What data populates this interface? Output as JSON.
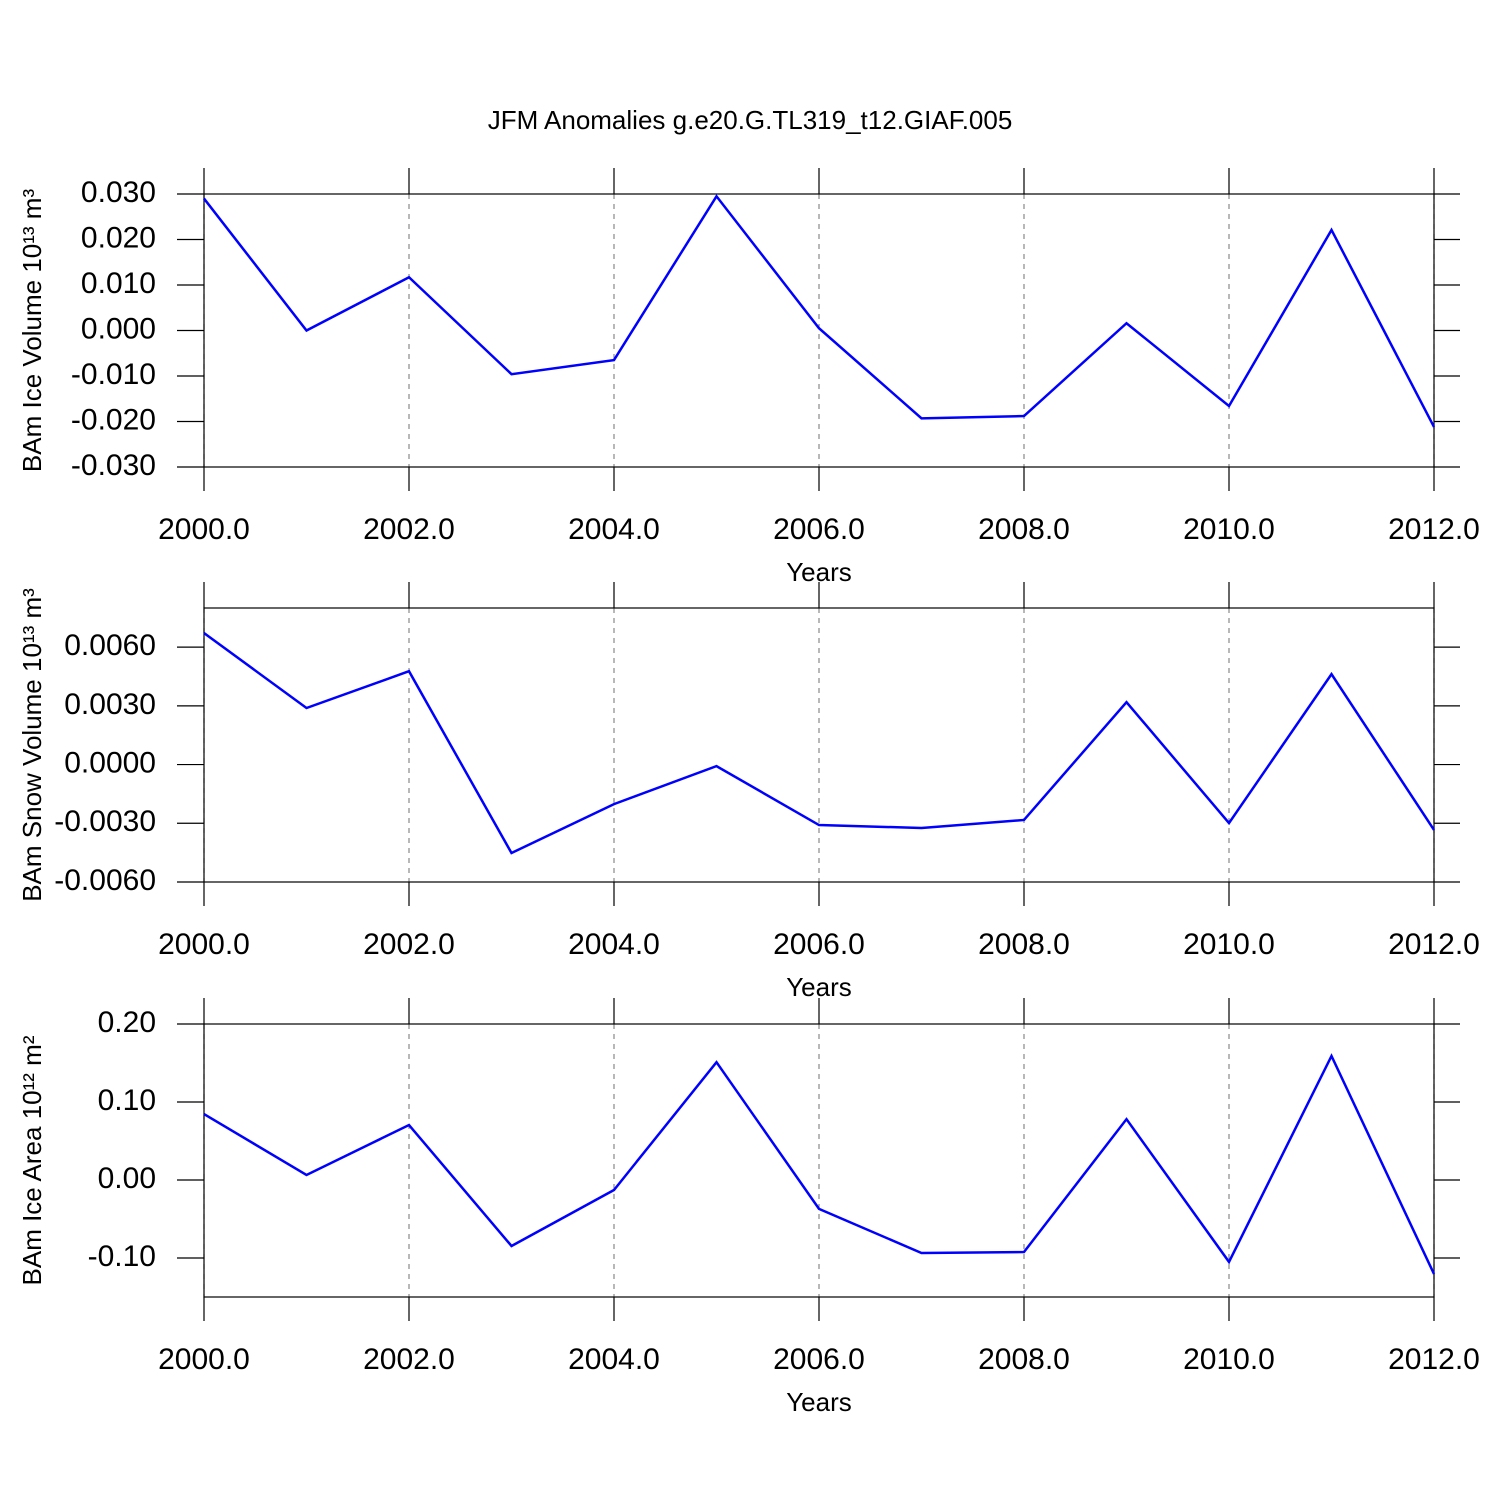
{
  "chart_data": [
    {
      "type": "line",
      "title": "JFM Anomalies g.e20.G.TL319_t12.GIAF.005",
      "xlabel": "Years",
      "ylabel": "BAm Ice Volume 10¹³ m³",
      "x": [
        2000,
        2001,
        2002,
        2003,
        2004,
        2005,
        2006,
        2007,
        2008,
        2009,
        2010,
        2011,
        2012
      ],
      "values": [
        0.029,
        0.0,
        0.0117,
        -0.0096,
        -0.0065,
        0.0295,
        0.0005,
        -0.0193,
        -0.0188,
        0.0016,
        -0.0166,
        0.0221,
        -0.0212
      ],
      "color": "#0000ff",
      "xlim": [
        2000,
        2012
      ],
      "xticks": [
        {
          "value": 2000,
          "label": "2000.0"
        },
        {
          "value": 2002,
          "label": "2002.0"
        },
        {
          "value": 2004,
          "label": "2004.0"
        },
        {
          "value": 2006,
          "label": "2006.0"
        },
        {
          "value": 2008,
          "label": "2008.0"
        },
        {
          "value": 2010,
          "label": "2010.0"
        },
        {
          "value": 2012,
          "label": "2012.0"
        }
      ],
      "ylim": [
        -0.03,
        0.03
      ],
      "yticks": [
        {
          "value": 0.03,
          "label": "0.030"
        },
        {
          "value": 0.02,
          "label": "0.020"
        },
        {
          "value": 0.01,
          "label": "0.010"
        },
        {
          "value": 0,
          "label": "0.000"
        },
        {
          "value": -0.01,
          "label": "-0.010"
        },
        {
          "value": -0.02,
          "label": "-0.020"
        },
        {
          "value": -0.03,
          "label": "-0.030"
        }
      ],
      "grid": true
    },
    {
      "type": "line",
      "xlabel": "Years",
      "ylabel": "BAm Snow Volume 10¹³ m³",
      "x": [
        2000,
        2001,
        2002,
        2003,
        2004,
        2005,
        2006,
        2007,
        2008,
        2009,
        2010,
        2011,
        2012
      ],
      "values": [
        0.00672,
        0.00289,
        0.00477,
        -0.00452,
        -0.00202,
        -8e-05,
        -0.00309,
        -0.00324,
        -0.00283,
        0.00319,
        -0.00299,
        0.00462,
        -0.00334
      ],
      "color": "#0000ff",
      "xlim": [
        2000,
        2012
      ],
      "xticks": [
        {
          "value": 2000,
          "label": "2000.0"
        },
        {
          "value": 2002,
          "label": "2002.0"
        },
        {
          "value": 2004,
          "label": "2004.0"
        },
        {
          "value": 2006,
          "label": "2006.0"
        },
        {
          "value": 2008,
          "label": "2008.0"
        },
        {
          "value": 2010,
          "label": "2010.0"
        },
        {
          "value": 2012,
          "label": "2012.0"
        }
      ],
      "ylim": [
        -0.006,
        0.008
      ],
      "yticks": [
        {
          "value": 0.006,
          "label": "0.0060"
        },
        {
          "value": 0.003,
          "label": "0.0030"
        },
        {
          "value": 0,
          "label": "0.0000"
        },
        {
          "value": -0.003,
          "label": "-0.0030"
        },
        {
          "value": -0.006,
          "label": "-0.0060"
        }
      ],
      "grid": true
    },
    {
      "type": "line",
      "xlabel": "Years",
      "ylabel": "BAm Ice Area 10¹² m²",
      "x": [
        2000,
        2001,
        2002,
        2003,
        2004,
        2005,
        2006,
        2007,
        2008,
        2009,
        2010,
        2011,
        2012
      ],
      "values": [
        0.0846,
        0.0064,
        0.0705,
        -0.0846,
        -0.0128,
        0.151,
        -0.037,
        -0.0936,
        -0.0923,
        0.078,
        -0.105,
        0.159,
        -0.1205
      ],
      "color": "#0000ff",
      "xlim": [
        2000,
        2012
      ],
      "xticks": [
        {
          "value": 2000,
          "label": "2000.0"
        },
        {
          "value": 2002,
          "label": "2002.0"
        },
        {
          "value": 2004,
          "label": "2004.0"
        },
        {
          "value": 2006,
          "label": "2006.0"
        },
        {
          "value": 2008,
          "label": "2008.0"
        },
        {
          "value": 2010,
          "label": "2010.0"
        },
        {
          "value": 2012,
          "label": "2012.0"
        }
      ],
      "ylim": [
        -0.15,
        0.2
      ],
      "yticks": [
        {
          "value": 0.2,
          "label": "0.20"
        },
        {
          "value": 0.1,
          "label": "0.10"
        },
        {
          "value": 0,
          "label": "0.00"
        },
        {
          "value": -0.1,
          "label": "-0.10"
        }
      ],
      "grid": true
    }
  ]
}
